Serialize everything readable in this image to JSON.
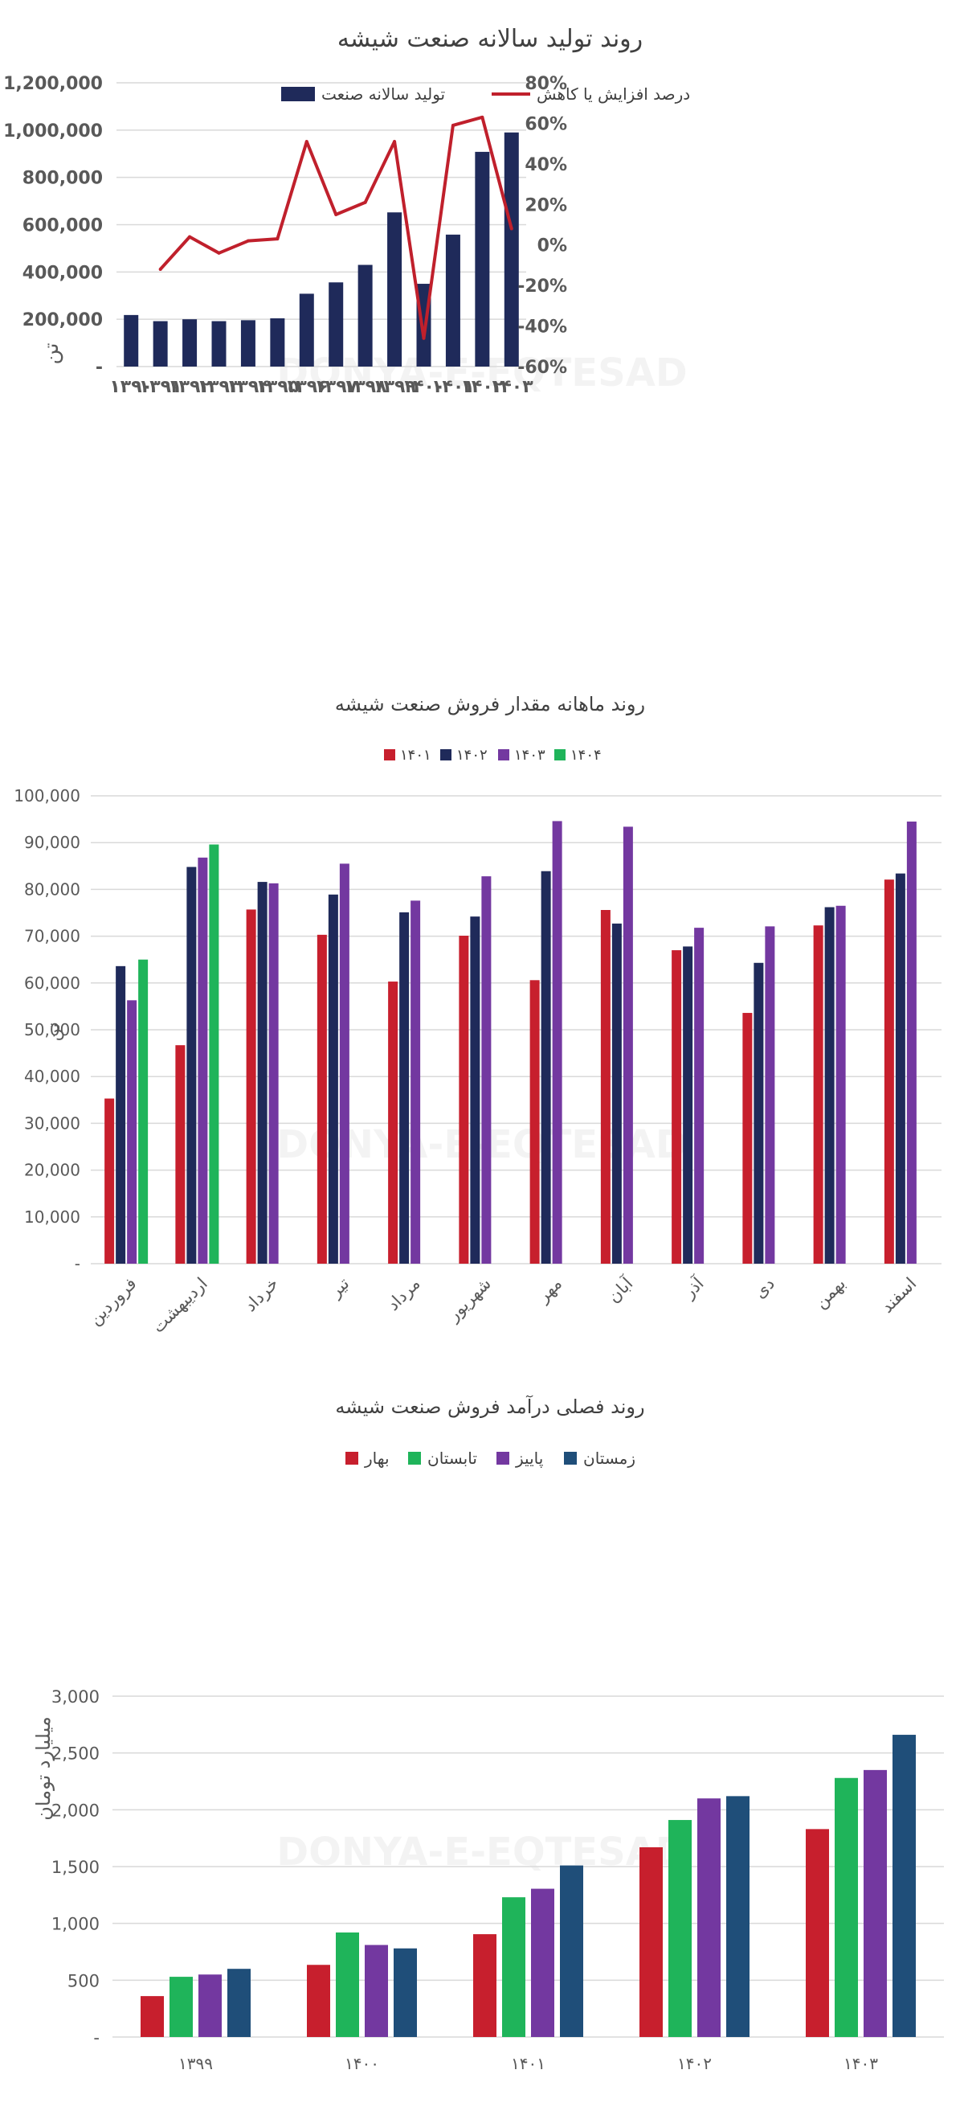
{
  "colors": {
    "navy": "#1f2a5a",
    "line_red": "#c0202c",
    "red": "#c71f2d",
    "navy2": "#1f2a5a",
    "purple": "#7338a0",
    "green": "#1fb45a",
    "blue": "#1f4e79",
    "grid": "#d9d9d9",
    "text": "#595959"
  },
  "watermark": {
    "text": "DONYA-E-EQTESAD"
  },
  "chart_data": [
    {
      "type": "bar+line",
      "title": "روند تولید سالانه صنعت شیشه",
      "ylabel": "تن",
      "ylim": [
        0,
        1200000
      ],
      "y2lim": [
        -60,
        80
      ],
      "yticks": [
        "-",
        "200,000",
        "400,000",
        "600,000",
        "800,000",
        "1,000,000",
        "1,200,000"
      ],
      "y2ticks": [
        "-60%",
        "-40%",
        "-20%",
        "0%",
        "20%",
        "40%",
        "60%",
        "80%"
      ],
      "categories": [
        "۱۳۹۰",
        "۱۳۹۱",
        "۱۳۹۲",
        "۱۳۹۳",
        "۱۳۹۴",
        "۱۳۹۵",
        "۱۳۹۶",
        "۱۳۹۷",
        "۱۳۹۸",
        "۱۳۹۹",
        "۱۴۰۰",
        "۱۴۰۱",
        "۱۴۰۲",
        "۱۴۰۳"
      ],
      "series": [
        {
          "name": "تولید سالانه صنعت",
          "kind": "bar",
          "axis": "left",
          "values": [
            218000,
            192000,
            200000,
            192000,
            196000,
            204000,
            308000,
            356000,
            430000,
            652000,
            350000,
            558000,
            908000,
            990000
          ]
        },
        {
          "name": "درصد افزایش یا کاهش",
          "kind": "line",
          "axis": "right",
          "values": [
            null,
            -12,
            4,
            -4,
            2,
            3,
            51,
            15,
            21,
            51,
            -46,
            59,
            63,
            8
          ]
        }
      ]
    },
    {
      "type": "bar",
      "title": "روند ماهانه مقدار فروش صنعت شیشه",
      "ylabel": "تن",
      "ylim": [
        0,
        100000
      ],
      "yticks": [
        "-",
        "10,000",
        "20,000",
        "30,000",
        "40,000",
        "50,000",
        "60,000",
        "70,000",
        "80,000",
        "90,000",
        "100,000"
      ],
      "categories": [
        "فروردین",
        "اردیبهشت",
        "خرداد",
        "تیر",
        "مرداد",
        "شهریور",
        "مهر",
        "آبان",
        "آذر",
        "دی",
        "بهمن",
        "اسفند"
      ],
      "series": [
        {
          "name": "۱۴۰۱",
          "values": [
            35300,
            46700,
            75700,
            70300,
            60300,
            70100,
            60600,
            75600,
            67000,
            53600,
            72300,
            82100
          ]
        },
        {
          "name": "۱۴۰۲",
          "values": [
            63600,
            84800,
            81600,
            78900,
            75100,
            74200,
            83900,
            72700,
            67800,
            64300,
            76200,
            83400
          ]
        },
        {
          "name": "۱۴۰۳",
          "values": [
            56300,
            86800,
            81300,
            85500,
            77600,
            82800,
            94600,
            93400,
            71800,
            72100,
            76500,
            94500
          ]
        },
        {
          "name": "۱۴۰۴",
          "values": [
            65000,
            89600,
            null,
            null,
            null,
            null,
            null,
            null,
            null,
            null,
            null,
            null
          ]
        }
      ]
    },
    {
      "type": "bar",
      "title": "روند فصلی درآمد فروش صنعت شیشه",
      "ylabel": "میلیارد تومان",
      "ylim": [
        0,
        3000
      ],
      "yticks": [
        "-",
        "500",
        "1,000",
        "1,500",
        "2,000",
        "2,500",
        "3,000"
      ],
      "categories": [
        "۱۳۹۹",
        "۱۴۰۰",
        "۱۴۰۱",
        "۱۴۰۲",
        "۱۴۰۳"
      ],
      "series": [
        {
          "name": "بهار",
          "values": [
            360,
            635,
            905,
            1670,
            1830
          ]
        },
        {
          "name": "تابستان",
          "values": [
            530,
            920,
            1230,
            1910,
            2280
          ]
        },
        {
          "name": "پاییز",
          "values": [
            550,
            810,
            1305,
            2100,
            2350
          ]
        },
        {
          "name": "زمستان",
          "values": [
            600,
            780,
            1510,
            2120,
            2660
          ]
        }
      ]
    }
  ]
}
